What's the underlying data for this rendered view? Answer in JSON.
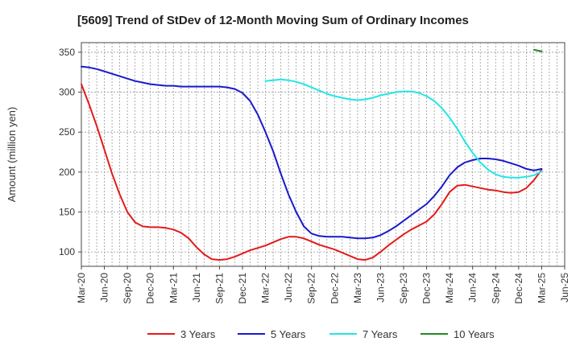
{
  "chart_data": {
    "type": "line",
    "title": "[5609]  Trend of StDev of 12-Month Moving Sum of Ordinary Incomes",
    "ylabel": "Amount (million yen)",
    "xlabel": "",
    "ylim": [
      82,
      362
    ],
    "yticks": [
      100,
      150,
      200,
      250,
      300,
      350
    ],
    "x_ticks": [
      "Mar-20",
      "Jun-20",
      "Sep-20",
      "Dec-20",
      "Mar-21",
      "Jun-21",
      "Sep-21",
      "Dec-21",
      "Mar-22",
      "Jun-22",
      "Sep-22",
      "Dec-22",
      "Mar-23",
      "Jun-23",
      "Sep-23",
      "Dec-23",
      "Mar-24",
      "Jun-24",
      "Sep-24",
      "Dec-24",
      "Mar-25",
      "Jun-25"
    ],
    "grid": true,
    "legend_position": "bottom",
    "series": [
      {
        "name": "3 Years",
        "color": "#e41a1a",
        "x": [
          "Mar-20",
          "Apr-20",
          "May-20",
          "Jun-20",
          "Jul-20",
          "Aug-20",
          "Sep-20",
          "Oct-20",
          "Nov-20",
          "Dec-20",
          "Jan-21",
          "Feb-21",
          "Mar-21",
          "Apr-21",
          "May-21",
          "Jun-21",
          "Jul-21",
          "Aug-21",
          "Sep-21",
          "Oct-21",
          "Nov-21",
          "Dec-21",
          "Jan-22",
          "Feb-22",
          "Mar-22",
          "Apr-22",
          "May-22",
          "Jun-22",
          "Jul-22",
          "Aug-22",
          "Sep-22",
          "Oct-22",
          "Nov-22",
          "Dec-22",
          "Jan-23",
          "Feb-23",
          "Mar-23",
          "Apr-23",
          "May-23",
          "Jun-23",
          "Jul-23",
          "Aug-23",
          "Sep-23",
          "Oct-23",
          "Nov-23",
          "Dec-23",
          "Jan-24",
          "Feb-24",
          "Mar-24",
          "Apr-24",
          "May-24",
          "Jun-24",
          "Jul-24",
          "Aug-24",
          "Sep-24",
          "Oct-24",
          "Nov-24",
          "Dec-24",
          "Jan-25",
          "Feb-25",
          "Mar-25"
        ],
        "y": [
          310,
          285,
          258,
          228,
          198,
          172,
          150,
          137,
          132,
          131,
          131,
          130,
          128,
          124,
          117,
          106,
          97,
          91,
          90,
          91,
          94,
          98,
          102,
          105,
          108,
          112,
          116,
          119,
          119,
          117,
          113,
          109,
          106,
          103,
          99,
          95,
          91,
          90,
          93,
          100,
          108,
          115,
          122,
          128,
          133,
          138,
          147,
          160,
          175,
          183,
          184,
          182,
          180,
          178,
          177,
          175,
          174,
          175,
          180,
          190,
          203
        ]
      },
      {
        "name": "5 Years",
        "color": "#1a1acc",
        "x": [
          "Mar-20",
          "Apr-20",
          "May-20",
          "Jun-20",
          "Jul-20",
          "Aug-20",
          "Sep-20",
          "Oct-20",
          "Nov-20",
          "Dec-20",
          "Jan-21",
          "Feb-21",
          "Mar-21",
          "Apr-21",
          "May-21",
          "Jun-21",
          "Jul-21",
          "Aug-21",
          "Sep-21",
          "Oct-21",
          "Nov-21",
          "Dec-21",
          "Jan-22",
          "Feb-22",
          "Mar-22",
          "Apr-22",
          "May-22",
          "Jun-22",
          "Jul-22",
          "Aug-22",
          "Sep-22",
          "Oct-22",
          "Nov-22",
          "Dec-22",
          "Jan-23",
          "Feb-23",
          "Mar-23",
          "Apr-23",
          "May-23",
          "Jun-23",
          "Jul-23",
          "Aug-23",
          "Sep-23",
          "Oct-23",
          "Nov-23",
          "Dec-23",
          "Jan-24",
          "Feb-24",
          "Mar-24",
          "Apr-24",
          "May-24",
          "Jun-24",
          "Jul-24",
          "Aug-24",
          "Sep-24",
          "Oct-24",
          "Nov-24",
          "Dec-24",
          "Jan-25",
          "Feb-25",
          "Mar-25"
        ],
        "y": [
          332,
          331,
          329,
          326,
          323,
          320,
          317,
          314,
          312,
          310,
          309,
          308,
          308,
          307,
          307,
          307,
          307,
          307,
          307,
          306,
          304,
          299,
          289,
          272,
          250,
          226,
          198,
          172,
          150,
          132,
          123,
          120,
          119,
          119,
          119,
          118,
          117,
          117,
          118,
          121,
          126,
          132,
          139,
          146,
          153,
          160,
          170,
          182,
          196,
          206,
          212,
          215,
          217,
          217,
          216,
          214,
          211,
          208,
          204,
          202,
          204
        ]
      },
      {
        "name": "7 Years",
        "color": "#22e6e6",
        "x": [
          "Mar-22",
          "Apr-22",
          "May-22",
          "Jun-22",
          "Jul-22",
          "Aug-22",
          "Sep-22",
          "Oct-22",
          "Nov-22",
          "Dec-22",
          "Jan-23",
          "Feb-23",
          "Mar-23",
          "Apr-23",
          "May-23",
          "Jun-23",
          "Jul-23",
          "Aug-23",
          "Sep-23",
          "Oct-23",
          "Nov-23",
          "Dec-23",
          "Jan-24",
          "Feb-24",
          "Mar-24",
          "Apr-24",
          "May-24",
          "Jun-24",
          "Jul-24",
          "Aug-24",
          "Sep-24",
          "Oct-24",
          "Nov-24",
          "Dec-24",
          "Jan-25",
          "Feb-25",
          "Mar-25"
        ],
        "y": [
          314,
          315,
          316,
          315,
          313,
          310,
          306,
          302,
          298,
          295,
          293,
          291,
          290,
          291,
          293,
          296,
          298,
          300,
          301,
          301,
          299,
          295,
          289,
          280,
          268,
          254,
          238,
          224,
          212,
          203,
          197,
          194,
          193,
          193,
          194,
          196,
          201
        ]
      },
      {
        "name": "10 Years",
        "color": "#228b22",
        "x": [
          "Feb-25",
          "Mar-25"
        ],
        "y": [
          353,
          351
        ]
      }
    ]
  }
}
